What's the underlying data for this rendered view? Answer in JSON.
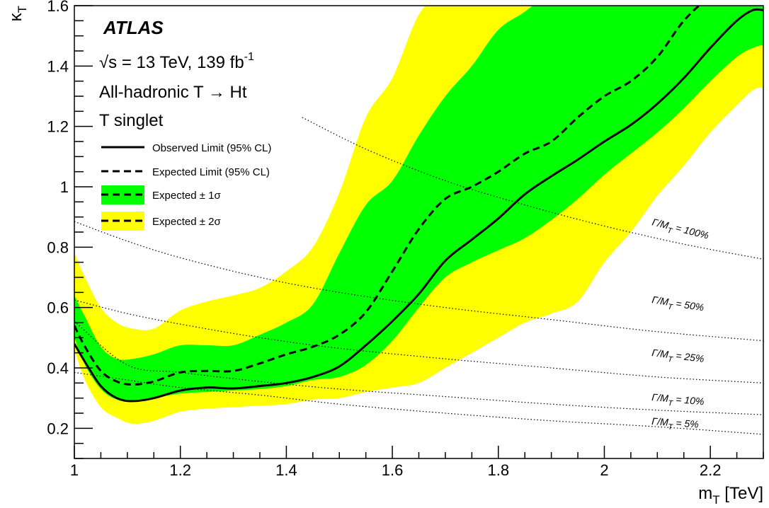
{
  "chart_data": {
    "type": "line",
    "experiment": "ATLAS",
    "info_lines": {
      "energy": "√s = 13 TeV, 139 fb",
      "energy_sup": "-1",
      "channel": "All-hadronic T → Ht",
      "model": "T singlet"
    },
    "xlabel": "m",
    "xlabel_sub": "T",
    "xlabel_unit": " [TeV]",
    "ylabel": "κ",
    "ylabel_sub": "T",
    "xlim": [
      1.0,
      2.3
    ],
    "ylim": [
      0.1,
      1.6
    ],
    "xticks": [
      1,
      1.2,
      1.4,
      1.6,
      1.8,
      2,
      2.2
    ],
    "xtick_labels": [
      "1",
      "1.2",
      "1.4",
      "1.6",
      "1.8",
      "2",
      "2.2"
    ],
    "yticks": [
      0.2,
      0.4,
      0.6,
      0.8,
      1,
      1.2,
      1.4,
      1.6
    ],
    "ytick_labels": [
      "0.2",
      "0.4",
      "0.6",
      "0.8",
      "1",
      "1.2",
      "1.4",
      "1.6"
    ],
    "legend": [
      {
        "label": "Observed Limit (95% CL)",
        "style": "solid"
      },
      {
        "label": "Expected Limit (95% CL)",
        "style": "dashed"
      },
      {
        "label": "Expected ± 1σ",
        "style": "band-green"
      },
      {
        "label": "Expected ± 2σ",
        "style": "band-yellow"
      }
    ],
    "colors": {
      "band_1sigma": "#00ff00",
      "band_2sigma": "#ffff00",
      "line": "#000000"
    },
    "x": [
      1.0,
      1.02,
      1.05,
      1.08,
      1.11,
      1.15,
      1.2,
      1.25,
      1.3,
      1.35,
      1.4,
      1.45,
      1.5,
      1.55,
      1.6,
      1.65,
      1.7,
      1.75,
      1.8,
      1.85,
      1.9,
      1.95,
      2.0,
      2.05,
      2.1,
      2.15,
      2.2,
      2.25,
      2.28,
      2.3
    ],
    "series": [
      {
        "name": "Observed Limit (95% CL)",
        "style": "solid",
        "values": [
          0.48,
          0.42,
          0.34,
          0.3,
          0.29,
          0.3,
          0.325,
          0.335,
          0.332,
          0.34,
          0.35,
          0.37,
          0.405,
          0.475,
          0.555,
          0.645,
          0.755,
          0.825,
          0.895,
          0.975,
          1.035,
          1.09,
          1.15,
          1.205,
          1.275,
          1.36,
          1.46,
          1.55,
          1.585,
          1.585
        ]
      },
      {
        "name": "Expected Limit (95% CL)",
        "style": "dashed",
        "values": [
          0.54,
          0.47,
          0.39,
          0.355,
          0.345,
          0.355,
          0.385,
          0.39,
          0.39,
          0.415,
          0.445,
          0.47,
          0.51,
          0.585,
          0.72,
          0.86,
          0.96,
          1.0,
          1.05,
          1.11,
          1.15,
          1.23,
          1.3,
          1.35,
          1.43,
          1.55,
          1.63,
          1.68,
          1.7,
          1.7
        ]
      }
    ],
    "bands": [
      {
        "name": "Expected ± 2σ",
        "color": "#ffff00",
        "upper": [
          0.78,
          0.7,
          0.6,
          0.55,
          0.53,
          0.53,
          0.59,
          0.62,
          0.64,
          0.665,
          0.72,
          0.8,
          0.98,
          1.23,
          1.36,
          1.57,
          1.66,
          1.72,
          1.78,
          1.82,
          1.86,
          1.9,
          1.95,
          2.0,
          2.05,
          2.1,
          2.15,
          2.2,
          2.22,
          2.25
        ],
        "lower": [
          0.46,
          0.36,
          0.27,
          0.235,
          0.215,
          0.225,
          0.255,
          0.265,
          0.27,
          0.275,
          0.28,
          0.295,
          0.3,
          0.32,
          0.335,
          0.35,
          0.4,
          0.45,
          0.5,
          0.55,
          0.58,
          0.62,
          0.75,
          0.85,
          0.97,
          1.07,
          1.18,
          1.27,
          1.32,
          1.33
        ]
      },
      {
        "name": "Expected ± 1σ",
        "color": "#00ff00",
        "upper": [
          0.64,
          0.57,
          0.47,
          0.43,
          0.43,
          0.445,
          0.475,
          0.475,
          0.475,
          0.51,
          0.55,
          0.61,
          0.78,
          0.94,
          1.02,
          1.17,
          1.3,
          1.4,
          1.52,
          1.58,
          1.65,
          1.72,
          1.78,
          1.85,
          1.9,
          1.95,
          2.0,
          2.05,
          2.08,
          2.1
        ]
      },
      {
        "name": "Expected ± 1σ (lower)",
        "color": "#00ff00",
        "lower": [
          0.5,
          0.41,
          0.33,
          0.295,
          0.29,
          0.3,
          0.315,
          0.32,
          0.325,
          0.33,
          0.34,
          0.36,
          0.37,
          0.41,
          0.49,
          0.6,
          0.7,
          0.75,
          0.79,
          0.83,
          0.89,
          0.96,
          1.04,
          1.11,
          1.18,
          1.26,
          1.35,
          1.43,
          1.46,
          1.47
        ]
      }
    ],
    "width_contours": [
      {
        "label": "Γ/M",
        "label_sub": "T",
        "label_value": " = 100%",
        "x": [
          1.43,
          1.55,
          1.7,
          1.85,
          2.0,
          2.15,
          2.3
        ],
        "values": [
          1.23,
          1.125,
          1.02,
          0.94,
          0.87,
          0.81,
          0.76
        ]
      },
      {
        "label": "Γ/M",
        "label_sub": "T",
        "label_value": " = 50%",
        "x": [
          1.0,
          1.1,
          1.2,
          1.35,
          1.5,
          1.7,
          1.9,
          2.1,
          2.3
        ],
        "values": [
          0.885,
          0.82,
          0.765,
          0.7,
          0.65,
          0.6,
          0.56,
          0.52,
          0.49
        ]
      },
      {
        "label": "Γ/M",
        "label_sub": "T",
        "label_value": " = 25%",
        "x": [
          1.0,
          1.1,
          1.2,
          1.35,
          1.5,
          1.7,
          1.9,
          2.1,
          2.3
        ],
        "values": [
          0.625,
          0.58,
          0.545,
          0.5,
          0.465,
          0.43,
          0.4,
          0.37,
          0.35
        ]
      },
      {
        "label": "Γ/M",
        "label_sub": "T",
        "label_value": " = 10%",
        "x": [
          1.0,
          1.1,
          1.2,
          1.35,
          1.5,
          1.7,
          1.9,
          2.1,
          2.3
        ],
        "values": [
          0.555,
          0.41,
          0.385,
          0.355,
          0.33,
          0.305,
          0.28,
          0.26,
          0.245
        ]
      },
      {
        "label": "Γ/M",
        "label_sub": "T",
        "label_value": " = 5%",
        "x": [
          1.0,
          1.1,
          1.2,
          1.35,
          1.5,
          1.7,
          1.9,
          2.1,
          2.3
        ],
        "values": [
          0.385,
          0.36,
          0.335,
          0.31,
          0.28,
          0.25,
          0.225,
          0.205,
          0.18
        ]
      }
    ],
    "grid": false,
    "legend_position": "top-left"
  }
}
